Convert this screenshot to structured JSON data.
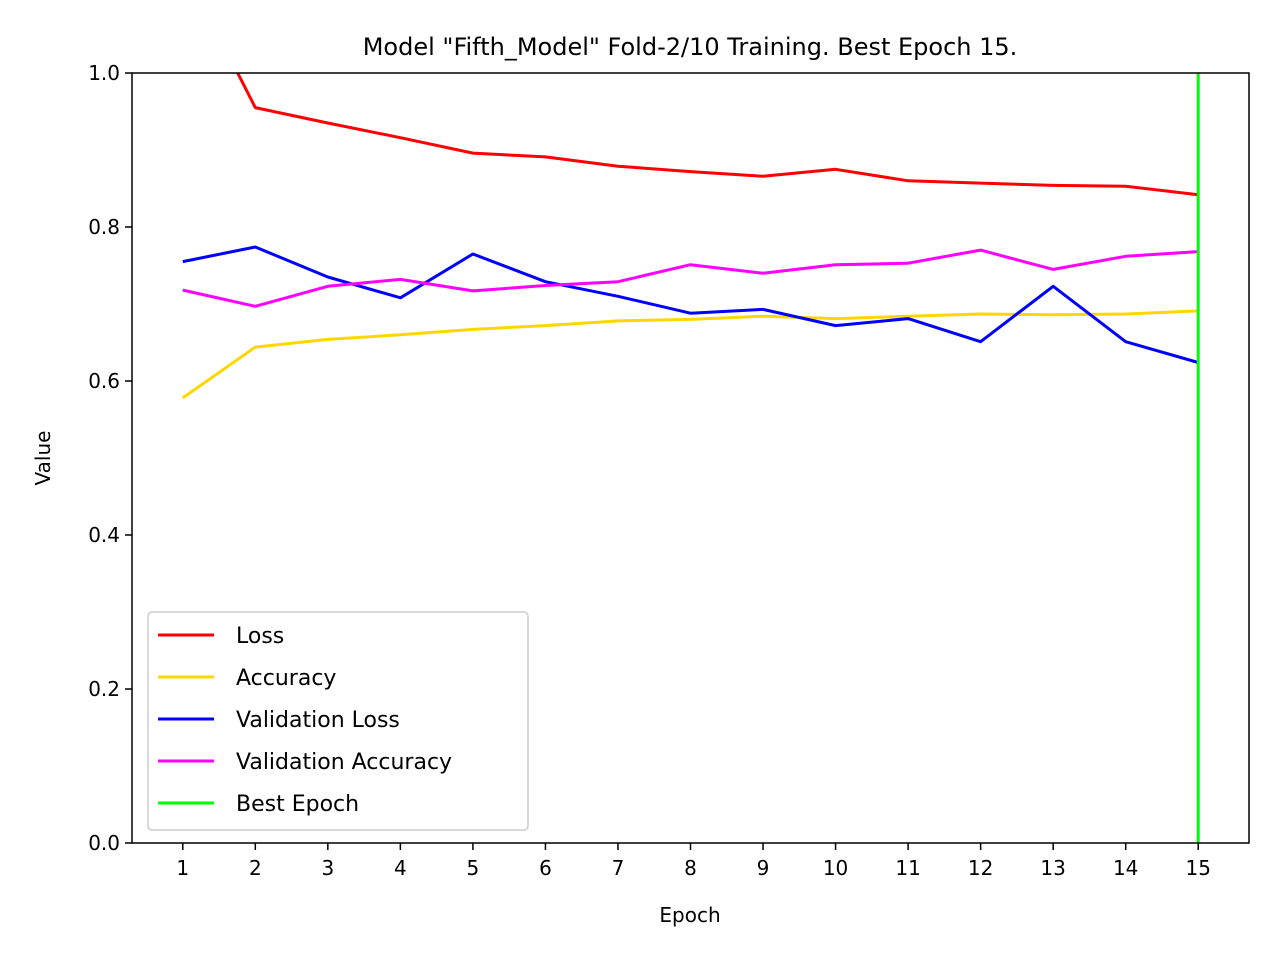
{
  "chart_data": {
    "type": "line",
    "title": "Model \"Fifth_Model\" Fold-2/10 Training. Best Epoch 15.",
    "xlabel": "Epoch",
    "ylabel": "Value",
    "ylim": [
      0,
      1.0
    ],
    "xlim": [
      0.3,
      15.7
    ],
    "x": [
      1,
      2,
      3,
      4,
      5,
      6,
      7,
      8,
      9,
      10,
      11,
      12,
      13,
      14,
      15
    ],
    "x_ticks": [
      "1",
      "2",
      "3",
      "4",
      "5",
      "6",
      "7",
      "8",
      "9",
      "10",
      "11",
      "12",
      "13",
      "14",
      "15"
    ],
    "y_ticks": [
      "0.0",
      "0.2",
      "0.4",
      "0.6",
      "0.8",
      "1.0"
    ],
    "grid": false,
    "legend_position": "lower-left",
    "series": [
      {
        "name": "Loss",
        "color": "#ff0000",
        "values": [
          1.14,
          0.955,
          0.935,
          0.916,
          0.896,
          0.891,
          0.879,
          0.872,
          0.866,
          0.875,
          0.86,
          0.857,
          0.854,
          0.853,
          0.842
        ]
      },
      {
        "name": "Accuracy",
        "color": "#ffd700",
        "values": [
          0.578,
          0.644,
          0.654,
          0.66,
          0.667,
          0.672,
          0.678,
          0.68,
          0.684,
          0.681,
          0.684,
          0.687,
          0.686,
          0.687,
          0.691
        ]
      },
      {
        "name": "Validation Loss",
        "color": "#0000ff",
        "values": [
          0.755,
          0.774,
          0.735,
          0.708,
          0.765,
          0.729,
          0.71,
          0.688,
          0.693,
          0.672,
          0.681,
          0.651,
          0.723,
          0.651,
          0.624
        ]
      },
      {
        "name": "Validation  Accuracy",
        "color": "#ff00ff",
        "values": [
          0.718,
          0.697,
          0.723,
          0.732,
          0.717,
          0.724,
          0.729,
          0.751,
          0.74,
          0.751,
          0.753,
          0.77,
          0.745,
          0.762,
          0.768
        ]
      }
    ],
    "best_epoch": {
      "name": "Best Epoch",
      "x": 15,
      "color": "#00ff00"
    }
  }
}
